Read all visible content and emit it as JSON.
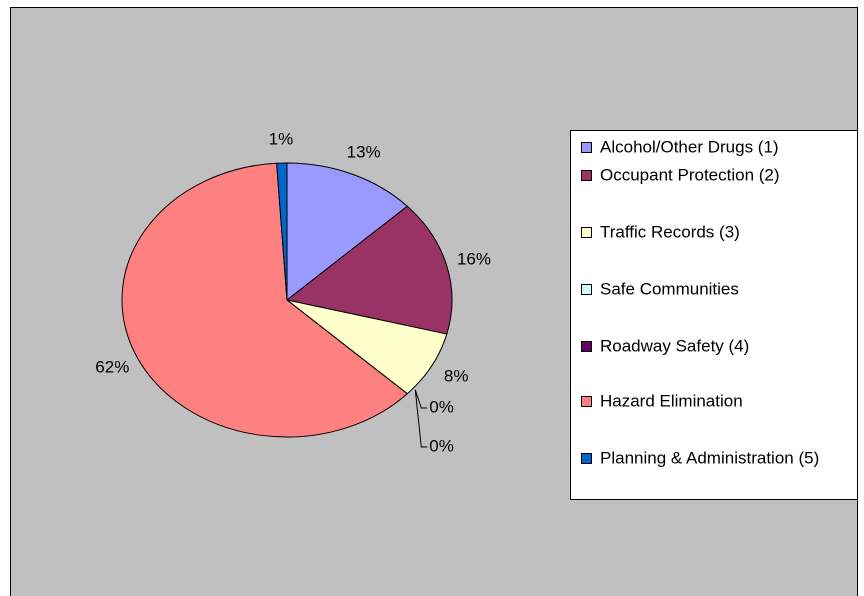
{
  "chart_data": {
    "type": "pie",
    "categories": [
      "Alcohol/Other Drugs (1)",
      "Occupant Protection (2)",
      "Traffic Records (3)",
      "Safe Communities",
      "Roadway Safety (4)",
      "Hazard Elimination",
      "Planning & Administration (5)"
    ],
    "values": [
      13,
      16,
      8,
      0,
      0,
      62,
      1
    ],
    "value_labels": [
      "13%",
      "16%",
      "8%",
      "0%",
      "0%",
      "62%",
      "1%"
    ],
    "colors": [
      "#9999ff",
      "#993366",
      "#ffffcc",
      "#ccffff",
      "#660066",
      "#ff8080",
      "#0066cc"
    ],
    "legend": "right"
  }
}
